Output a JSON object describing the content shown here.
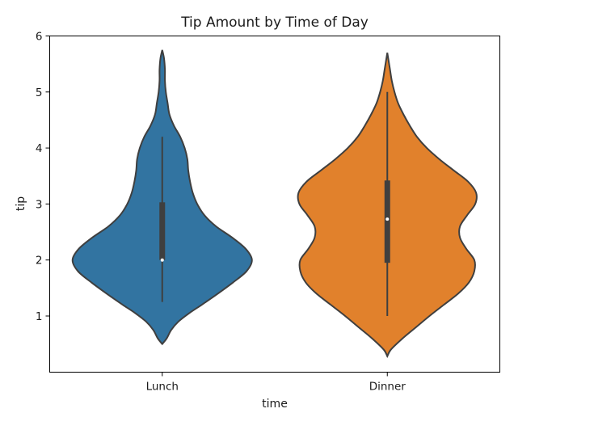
{
  "chart_data": {
    "type": "violin",
    "title": "Tip Amount by Time of Day",
    "xlabel": "time",
    "ylabel": "tip",
    "categories": [
      "Lunch",
      "Dinner"
    ],
    "ylim": [
      0,
      6
    ],
    "yticks": [
      1,
      2,
      3,
      4,
      5,
      6
    ],
    "grid": false,
    "colors": [
      "#3274a1",
      "#e1812c"
    ],
    "series": [
      {
        "category": "Lunch",
        "box": {
          "q1": 2.0,
          "median": 2.0,
          "q3": 3.03,
          "whisker_low": 1.25,
          "whisker_high": 4.2
        },
        "density": [
          [
            0.5,
            0.0
          ],
          [
            0.6,
            0.05
          ],
          [
            0.75,
            0.1
          ],
          [
            0.9,
            0.18
          ],
          [
            1.05,
            0.3
          ],
          [
            1.2,
            0.44
          ],
          [
            1.4,
            0.62
          ],
          [
            1.6,
            0.79
          ],
          [
            1.8,
            0.94
          ],
          [
            2.0,
            1.0
          ],
          [
            2.2,
            0.93
          ],
          [
            2.4,
            0.78
          ],
          [
            2.6,
            0.6
          ],
          [
            2.8,
            0.47
          ],
          [
            3.0,
            0.39
          ],
          [
            3.2,
            0.34
          ],
          [
            3.4,
            0.31
          ],
          [
            3.6,
            0.29
          ],
          [
            3.8,
            0.28
          ],
          [
            4.0,
            0.25
          ],
          [
            4.2,
            0.2
          ],
          [
            4.4,
            0.13
          ],
          [
            4.6,
            0.08
          ],
          [
            4.8,
            0.06
          ],
          [
            5.0,
            0.04
          ],
          [
            5.2,
            0.03
          ],
          [
            5.4,
            0.03
          ],
          [
            5.6,
            0.02
          ],
          [
            5.75,
            0.0
          ]
        ]
      },
      {
        "category": "Dinner",
        "box": {
          "q1": 1.95,
          "median": 2.73,
          "q3": 3.42,
          "whisker_low": 1.0,
          "whisker_high": 5.0
        },
        "density": [
          [
            0.28,
            0.0
          ],
          [
            0.4,
            0.04
          ],
          [
            0.6,
            0.17
          ],
          [
            0.8,
            0.32
          ],
          [
            1.0,
            0.47
          ],
          [
            1.2,
            0.63
          ],
          [
            1.4,
            0.79
          ],
          [
            1.6,
            0.91
          ],
          [
            1.8,
            0.97
          ],
          [
            2.0,
            0.97
          ],
          [
            2.2,
            0.88
          ],
          [
            2.4,
            0.81
          ],
          [
            2.6,
            0.81
          ],
          [
            2.8,
            0.89
          ],
          [
            3.0,
            0.98
          ],
          [
            3.2,
            0.99
          ],
          [
            3.4,
            0.9
          ],
          [
            3.6,
            0.74
          ],
          [
            3.8,
            0.58
          ],
          [
            4.0,
            0.44
          ],
          [
            4.2,
            0.33
          ],
          [
            4.4,
            0.25
          ],
          [
            4.6,
            0.18
          ],
          [
            4.8,
            0.12
          ],
          [
            5.0,
            0.08
          ],
          [
            5.2,
            0.05
          ],
          [
            5.4,
            0.03
          ],
          [
            5.6,
            0.01
          ],
          [
            5.7,
            0.0
          ]
        ]
      }
    ]
  }
}
